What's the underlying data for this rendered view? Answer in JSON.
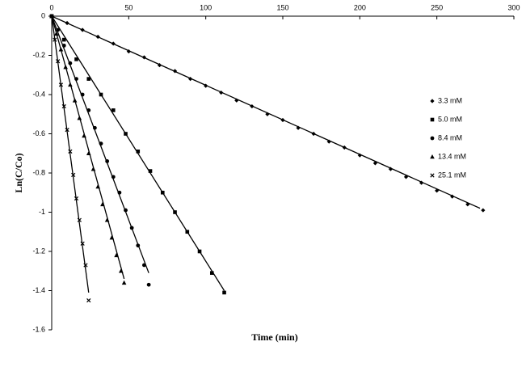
{
  "chart_data": {
    "type": "scatter",
    "x_label": "Time (min)",
    "y_label": "Ln(C/Co)",
    "xlim": [
      0,
      300
    ],
    "xticks": [
      0,
      50,
      100,
      150,
      200,
      250,
      300
    ],
    "x_axis_position": "top",
    "ylim": [
      -1.6,
      0
    ],
    "yticks": [
      0,
      -0.2,
      -0.4,
      -0.6,
      -0.8,
      -1,
      -1.2,
      -1.4,
      -1.6
    ],
    "grid": false,
    "legend": "right",
    "series": [
      {
        "name": "3.3 mM",
        "marker": "diamond",
        "color": "#000000",
        "x": [
          0,
          10,
          20,
          30,
          40,
          50,
          60,
          70,
          80,
          90,
          100,
          110,
          120,
          130,
          140,
          150,
          160,
          170,
          180,
          190,
          200,
          210,
          220,
          230,
          240,
          250,
          260,
          270,
          280
        ],
        "values": [
          0,
          -0.035,
          -0.07,
          -0.105,
          -0.14,
          -0.18,
          -0.21,
          -0.25,
          -0.28,
          -0.32,
          -0.355,
          -0.39,
          -0.43,
          -0.46,
          -0.5,
          -0.53,
          -0.57,
          -0.6,
          -0.64,
          -0.67,
          -0.71,
          -0.75,
          -0.78,
          -0.82,
          -0.85,
          -0.89,
          -0.92,
          -0.96,
          -0.99
        ],
        "trendline": {
          "x": [
            0,
            278
          ],
          "values": [
            0,
            -0.98
          ]
        }
      },
      {
        "name": "5.0 mM",
        "marker": "square",
        "color": "#000000",
        "x": [
          0,
          8,
          16,
          24,
          32,
          40,
          48,
          56,
          64,
          72,
          80,
          88,
          96,
          104,
          112
        ],
        "values": [
          0,
          -0.12,
          -0.22,
          -0.32,
          -0.4,
          -0.48,
          -0.6,
          -0.69,
          -0.79,
          -0.9,
          -1,
          -1.1,
          -1.2,
          -1.31,
          -1.41
        ],
        "trendline": {
          "x": [
            0,
            112
          ],
          "values": [
            0,
            -1.4
          ]
        }
      },
      {
        "name": "8.4 mM",
        "marker": "circle",
        "color": "#000000",
        "x": [
          0,
          4,
          8,
          12,
          16,
          20,
          24,
          28,
          32,
          36,
          40,
          44,
          48,
          52,
          56,
          60,
          63
        ],
        "values": [
          0,
          -0.07,
          -0.15,
          -0.24,
          -0.32,
          -0.4,
          -0.48,
          -0.57,
          -0.65,
          -0.74,
          -0.82,
          -0.9,
          -0.99,
          -1.08,
          -1.17,
          -1.27,
          -1.37
        ],
        "trendline": {
          "x": [
            0,
            63
          ],
          "values": [
            0,
            -1.31
          ]
        }
      },
      {
        "name": "13.4 mM",
        "marker": "triangle",
        "color": "#000000",
        "x": [
          0,
          3,
          6,
          9,
          12,
          15,
          18,
          21,
          24,
          27,
          30,
          33,
          36,
          39,
          42,
          45,
          47
        ],
        "values": [
          0,
          -0.09,
          -0.17,
          -0.26,
          -0.35,
          -0.43,
          -0.52,
          -0.61,
          -0.7,
          -0.78,
          -0.87,
          -0.96,
          -1.04,
          -1.13,
          -1.22,
          -1.3,
          -1.36
        ],
        "trendline": {
          "x": [
            0,
            47
          ],
          "values": [
            0,
            -1.34
          ]
        }
      },
      {
        "name": "25.1 mM",
        "marker": "x",
        "color": "#000000",
        "x": [
          0,
          2,
          4,
          6,
          8,
          10,
          12,
          14,
          16,
          18,
          20,
          22,
          24
        ],
        "values": [
          0,
          -0.12,
          -0.23,
          -0.35,
          -0.46,
          -0.58,
          -0.69,
          -0.81,
          -0.93,
          -1.04,
          -1.16,
          -1.27,
          -1.45
        ],
        "trendline": {
          "x": [
            0,
            24
          ],
          "values": [
            0,
            -1.41
          ]
        }
      }
    ]
  }
}
